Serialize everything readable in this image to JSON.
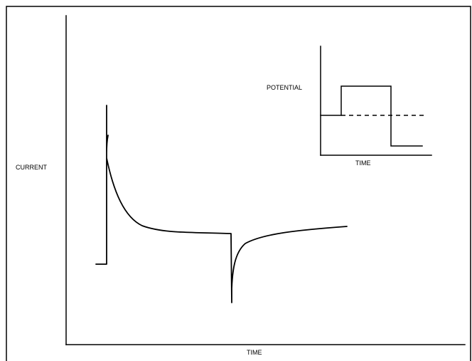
{
  "main_chart": {
    "y_label": "CURRENT",
    "x_label": "TIME"
  },
  "inset_chart": {
    "y_label": "POTENTIAL",
    "x_label": "TIME"
  }
}
